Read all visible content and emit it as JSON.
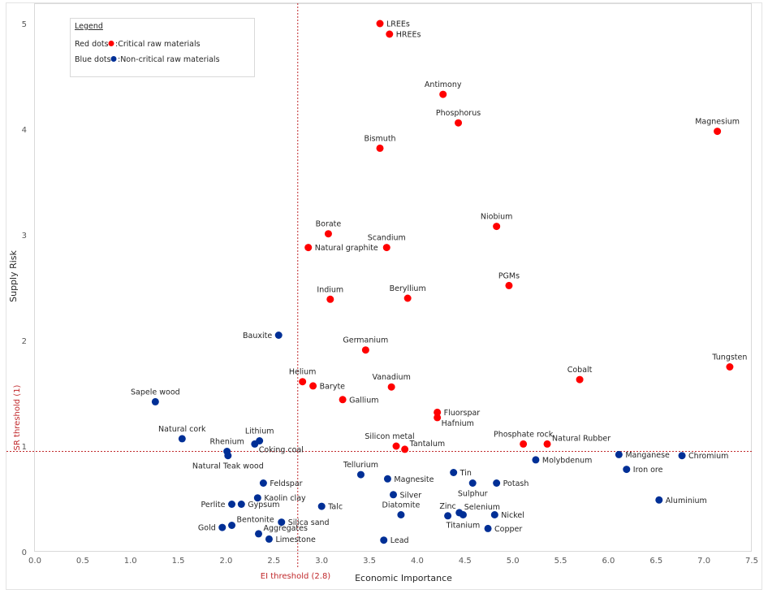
{
  "chart_data": {
    "type": "scatter",
    "title": "",
    "xlabel": "Economic Importance",
    "ylabel": "Supply Risk",
    "xlim": [
      0,
      7.5
    ],
    "ylim": [
      0,
      5
    ],
    "xticks": [
      "0.0",
      "0.5",
      "1.0",
      "1.5",
      "2.0",
      "2.5",
      "3.0",
      "3.5",
      "4.0",
      "4.5",
      "5.0",
      "5.5",
      "6.0",
      "6.5",
      "7.0",
      "7.5"
    ],
    "yticks": [
      "0",
      "1",
      "2",
      "3",
      "4",
      "5"
    ],
    "grid": false,
    "colors": {
      "critical": "#ff0000",
      "non_critical": "#002f96",
      "threshold": "#c0282b"
    },
    "thresholds": {
      "ei": {
        "label": "EI threshold (2.8)",
        "value": 2.75
      },
      "sr": {
        "label": "SR threshold (1)",
        "value": 0.95
      }
    },
    "legend": {
      "title": "Legend",
      "position": "top-left",
      "entries": [
        {
          "prefix": "Red dots",
          "text": ":Critical raw materials",
          "series": "critical"
        },
        {
          "prefix": "Blue dots",
          "text": ":Non-critical  raw materials",
          "series": "non_critical"
        }
      ]
    },
    "series": [
      {
        "name": "Critical raw materials",
        "key": "critical",
        "points": [
          {
            "label": "LREEs",
            "x": 3.61,
            "y": 5.0,
            "pos": "right"
          },
          {
            "label": "HREEs",
            "x": 3.71,
            "y": 4.9,
            "pos": "right"
          },
          {
            "label": "Antimony",
            "x": 4.27,
            "y": 4.33,
            "pos": "above"
          },
          {
            "label": "Phosphorus",
            "x": 4.43,
            "y": 4.06,
            "pos": "above"
          },
          {
            "label": "Bismuth",
            "x": 3.61,
            "y": 3.82,
            "pos": "above"
          },
          {
            "label": "Magnesium",
            "x": 7.14,
            "y": 3.98,
            "pos": "above"
          },
          {
            "label": "Borate",
            "x": 3.07,
            "y": 3.01,
            "pos": "above"
          },
          {
            "label": "Natural graphite",
            "x": 2.86,
            "y": 2.88,
            "pos": "right"
          },
          {
            "label": "Scandium",
            "x": 3.68,
            "y": 2.88,
            "pos": "above"
          },
          {
            "label": "Niobium",
            "x": 4.83,
            "y": 3.08,
            "pos": "above"
          },
          {
            "label": "PGMs",
            "x": 4.96,
            "y": 2.52,
            "pos": "above"
          },
          {
            "label": "Indium",
            "x": 3.09,
            "y": 2.39,
            "pos": "above"
          },
          {
            "label": "Beryllium",
            "x": 3.9,
            "y": 2.4,
            "pos": "above"
          },
          {
            "label": "Germanium",
            "x": 3.46,
            "y": 1.91,
            "pos": "above"
          },
          {
            "label": "Helium",
            "x": 2.8,
            "y": 1.61,
            "pos": "above"
          },
          {
            "label": "Baryte",
            "x": 2.91,
            "y": 1.57,
            "pos": "right"
          },
          {
            "label": "Gallium",
            "x": 3.22,
            "y": 1.44,
            "pos": "right"
          },
          {
            "label": "Vanadium",
            "x": 3.73,
            "y": 1.56,
            "pos": "above"
          },
          {
            "label": "Fluorspar",
            "x": 4.21,
            "y": 1.32,
            "pos": "right"
          },
          {
            "label": "Hafnium",
            "x": 4.21,
            "y": 1.27,
            "pos": "rightlow"
          },
          {
            "label": "Silicon metal",
            "x": 3.78,
            "y": 1.0,
            "pos": "aboveleft"
          },
          {
            "label": "Tantalum",
            "x": 3.87,
            "y": 0.97,
            "pos": "rightup"
          },
          {
            "label": "Tungsten",
            "x": 7.27,
            "y": 1.75,
            "pos": "above"
          },
          {
            "label": "Cobalt",
            "x": 5.7,
            "y": 1.63,
            "pos": "above"
          },
          {
            "label": "Phosphate rock",
            "x": 5.11,
            "y": 1.02,
            "pos": "above"
          },
          {
            "label": "Natural Rubber",
            "x": 5.36,
            "y": 1.02,
            "pos": "rightup"
          }
        ]
      },
      {
        "name": "Non-critical raw materials",
        "key": "non_critical",
        "points": [
          {
            "label": "Bauxite",
            "x": 2.55,
            "y": 2.05,
            "pos": "left"
          },
          {
            "label": "Sapele wood",
            "x": 1.26,
            "y": 1.42,
            "pos": "above"
          },
          {
            "label": "Natural cork",
            "x": 1.54,
            "y": 1.07,
            "pos": "above"
          },
          {
            "label": "Rhenium",
            "x": 2.01,
            "y": 0.95,
            "pos": "above"
          },
          {
            "label": "Natural Teak wood",
            "x": 2.02,
            "y": 0.91,
            "pos": "below"
          },
          {
            "label": "Lithium",
            "x": 2.35,
            "y": 1.05,
            "pos": "above"
          },
          {
            "label": "Coking coal",
            "x": 2.3,
            "y": 1.02,
            "pos": "rightlow"
          },
          {
            "label": "Feldspar",
            "x": 2.39,
            "y": 0.65,
            "pos": "right"
          },
          {
            "label": "Kaolin clay",
            "x": 2.33,
            "y": 0.51,
            "pos": "right"
          },
          {
            "label": "Perlite",
            "x": 2.06,
            "y": 0.45,
            "pos": "left"
          },
          {
            "label": "Gypsum",
            "x": 2.16,
            "y": 0.45,
            "pos": "right"
          },
          {
            "label": "Talc",
            "x": 3.0,
            "y": 0.43,
            "pos": "right"
          },
          {
            "label": "Gold",
            "x": 1.96,
            "y": 0.23,
            "pos": "left"
          },
          {
            "label": "Bentonite",
            "x": 2.06,
            "y": 0.25,
            "pos": "rightup"
          },
          {
            "label": "Silica sand",
            "x": 2.58,
            "y": 0.28,
            "pos": "right"
          },
          {
            "label": "Aggregates",
            "x": 2.34,
            "y": 0.17,
            "pos": "rightup"
          },
          {
            "label": "Limestone",
            "x": 2.45,
            "y": 0.12,
            "pos": "right"
          },
          {
            "label": "Tellurium",
            "x": 3.41,
            "y": 0.73,
            "pos": "above"
          },
          {
            "label": "Magnesite",
            "x": 3.69,
            "y": 0.69,
            "pos": "right"
          },
          {
            "label": "Silver",
            "x": 3.75,
            "y": 0.54,
            "pos": "right"
          },
          {
            "label": "Diatomite",
            "x": 3.83,
            "y": 0.35,
            "pos": "above"
          },
          {
            "label": "Lead",
            "x": 3.65,
            "y": 0.11,
            "pos": "right"
          },
          {
            "label": "Tin",
            "x": 4.38,
            "y": 0.75,
            "pos": "right"
          },
          {
            "label": "Sulphur",
            "x": 4.58,
            "y": 0.65,
            "pos": "below"
          },
          {
            "label": "Potash",
            "x": 4.83,
            "y": 0.65,
            "pos": "right"
          },
          {
            "label": "Zinc",
            "x": 4.32,
            "y": 0.34,
            "pos": "above"
          },
          {
            "label": "Selenium",
            "x": 4.44,
            "y": 0.37,
            "pos": "rightup"
          },
          {
            "label": "Titanium",
            "x": 4.48,
            "y": 0.35,
            "pos": "below"
          },
          {
            "label": "Nickel",
            "x": 4.81,
            "y": 0.35,
            "pos": "right"
          },
          {
            "label": "Copper",
            "x": 4.74,
            "y": 0.22,
            "pos": "right"
          },
          {
            "label": "Molybdenum",
            "x": 5.24,
            "y": 0.87,
            "pos": "right"
          },
          {
            "label": "Manganese",
            "x": 6.11,
            "y": 0.92,
            "pos": "right"
          },
          {
            "label": "Chromium",
            "x": 6.77,
            "y": 0.91,
            "pos": "right"
          },
          {
            "label": "Iron ore",
            "x": 6.19,
            "y": 0.78,
            "pos": "right"
          },
          {
            "label": "Aluminium",
            "x": 6.53,
            "y": 0.49,
            "pos": "right"
          }
        ]
      }
    ]
  }
}
